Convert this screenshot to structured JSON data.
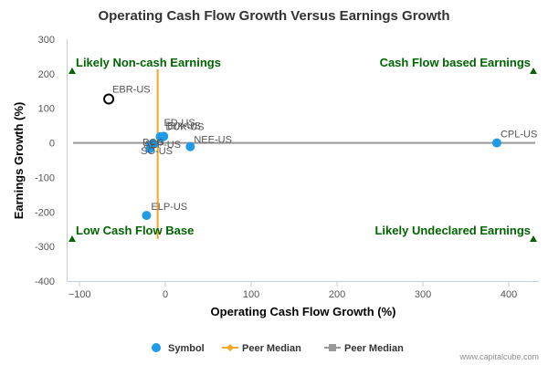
{
  "chart_data": {
    "type": "scatter",
    "title": "Operating Cash Flow Growth Versus Earnings Growth",
    "xlabel": "Operating Cash Flow Growth (%)",
    "ylabel": "Earnings Growth (%)",
    "xlim": [
      -115,
      435
    ],
    "ylim": [
      -400,
      300
    ],
    "x_ticks": [
      -100,
      0,
      100,
      200,
      300,
      400
    ],
    "x_tick_labels": [
      "−100",
      "0",
      "100",
      "200",
      "300",
      "400"
    ],
    "y_ticks": [
      -400,
      -300,
      -200,
      -100,
      0,
      100,
      200,
      300
    ],
    "y_tick_labels": [
      "-400",
      "-300",
      "-200",
      "-100",
      "0",
      "100",
      "200",
      "300"
    ],
    "grid": false,
    "legend_position": "bottom",
    "colors": {
      "symbol": "#1f9be8",
      "peer_median_x": "#f5a623",
      "peer_median_y": "#999999",
      "quadrant": "#006400"
    },
    "points": [
      {
        "label": "CPL-US",
        "x": 386,
        "y": 0
      },
      {
        "label": "ELP-US",
        "x": -22,
        "y": -210
      },
      {
        "label": "EIX-US",
        "x": -2,
        "y": 19
      },
      {
        "label": "DUK-US",
        "x": -4,
        "y": 16
      },
      {
        "label": "ED-US",
        "x": -6,
        "y": 18
      },
      {
        "label": "NEE-US",
        "x": 29,
        "y": -11
      },
      {
        "label": "PCG",
        "x": -14,
        "y": -3
      },
      {
        "label": "AEP-US",
        "x": -17,
        "y": -6
      },
      {
        "label": "SO-US",
        "x": -18,
        "y": -17
      }
    ],
    "highlight": {
      "label": "EBR-US",
      "x": -66,
      "y": 127
    },
    "peer_median_x": -9,
    "peer_median_y": 0,
    "quadrant_labels": {
      "top_left": "Likely Non-cash Earnings",
      "top_right": "Cash Flow based Earnings",
      "bottom_left": "Low Cash Flow Base",
      "bottom_right": "Likely Undeclared Earnings"
    },
    "legend": [
      {
        "label": "Symbol",
        "type": "circle"
      },
      {
        "label": "Peer Median",
        "type": "diamond-line"
      },
      {
        "label": "Peer Median",
        "type": "square-line"
      }
    ]
  },
  "credit": "www.capitalcube.com"
}
